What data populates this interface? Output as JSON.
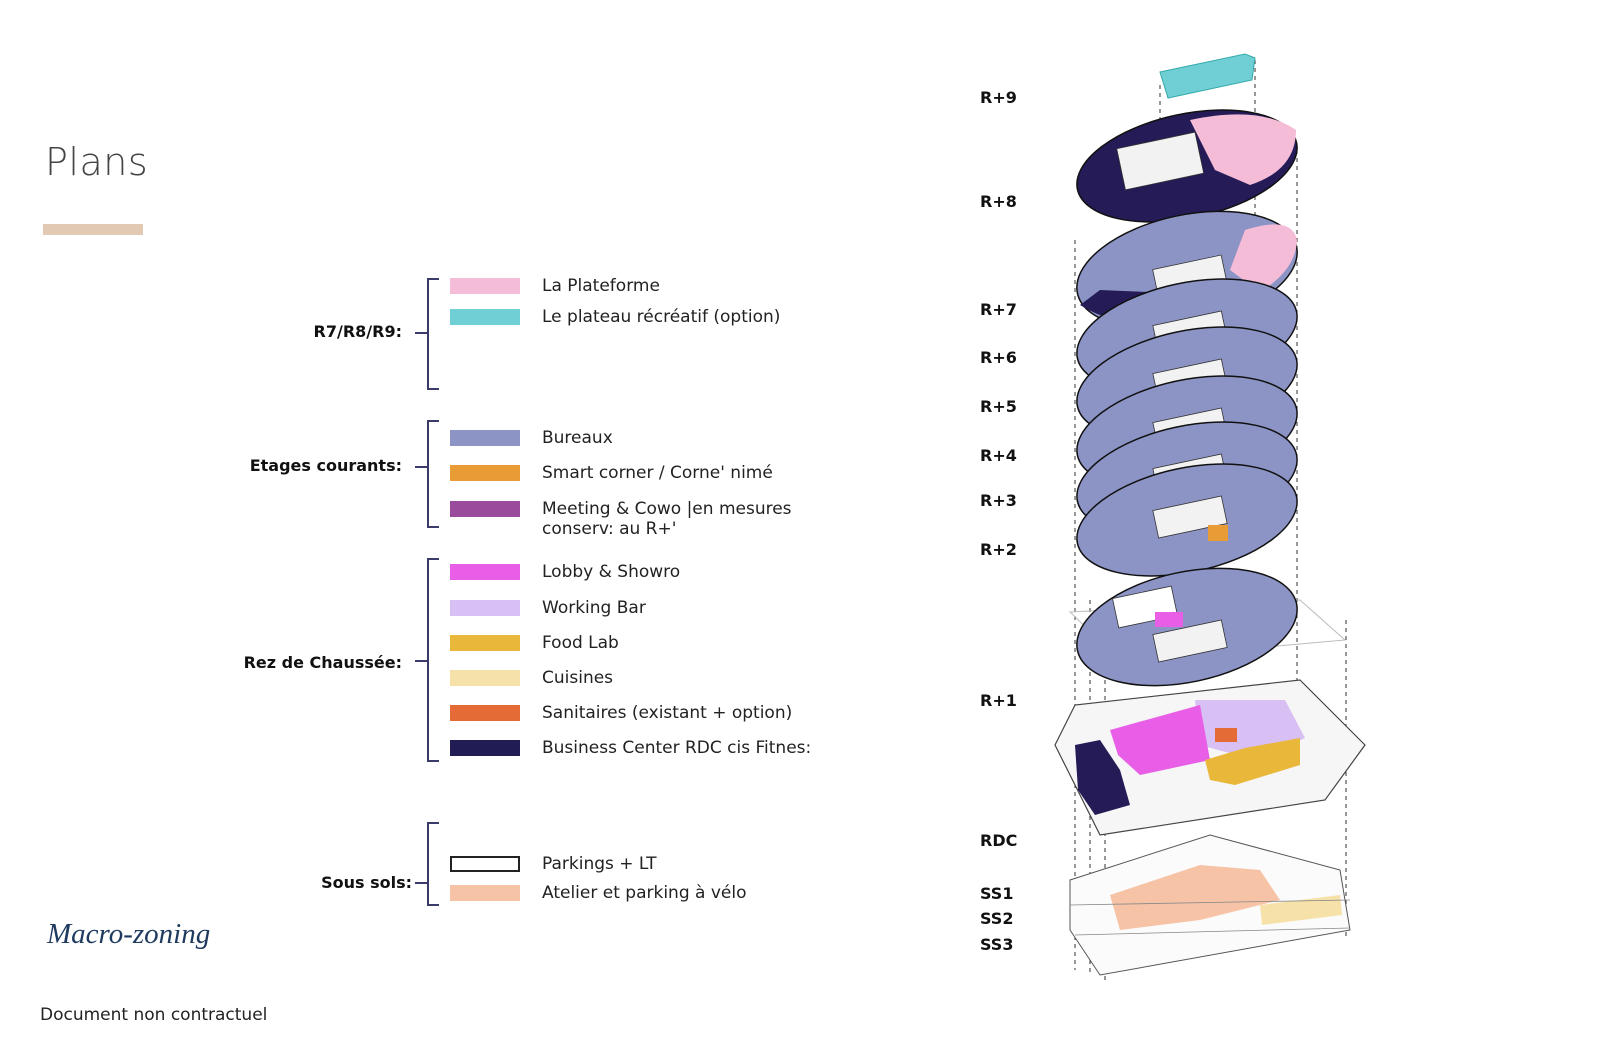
{
  "page": {
    "title": "Plans",
    "subtitle": "Macro-zoning",
    "footer": "Document non contractuel"
  },
  "legend": {
    "groups": [
      {
        "label": "R7/R8/R9:",
        "items": [
          {
            "label": "La Plateforme",
            "color": "#f4bcd6"
          },
          {
            "label": "Le plateau récréatif (option)",
            "color": "#6fcfd4"
          }
        ]
      },
      {
        "label": "Etages courants:",
        "items": [
          {
            "label": "Bureaux",
            "color": "#8c94c6"
          },
          {
            "label": "Smart corner / Corne' nimé",
            "color": "#e99b36"
          },
          {
            "label": "Meeting & Cowo  |en mesures conserv: au R+'",
            "color": "#9a4b9b"
          }
        ]
      },
      {
        "label": "Rez de Chaussée:",
        "items": [
          {
            "label": "Lobby & Showro",
            "color": "#e95ee6"
          },
          {
            "label": "Working Bar",
            "color": "#d8bff4"
          },
          {
            "label": "Food Lab",
            "color": "#e9b83b"
          },
          {
            "label": "Cuisines",
            "color": "#f6e1a9"
          },
          {
            "label": "Sanitaires (existant + option)",
            "color": "#e46a36"
          },
          {
            "label": "Business Center RDC cis Fitnes:",
            "color": "#221c54"
          }
        ]
      },
      {
        "label": "Sous sols:",
        "items": [
          {
            "label": "Parkings + LT",
            "color": "#ffffff"
          },
          {
            "label": "Atelier et parking à vélo",
            "color": "#f6c3a6"
          }
        ]
      }
    ]
  },
  "levels": [
    "R+9",
    "R+8",
    "R+7",
    "R+6",
    "R+5",
    "R+4",
    "R+3",
    "R+2",
    "R+1",
    "RDC",
    "SS1",
    "SS2",
    "SS3"
  ]
}
